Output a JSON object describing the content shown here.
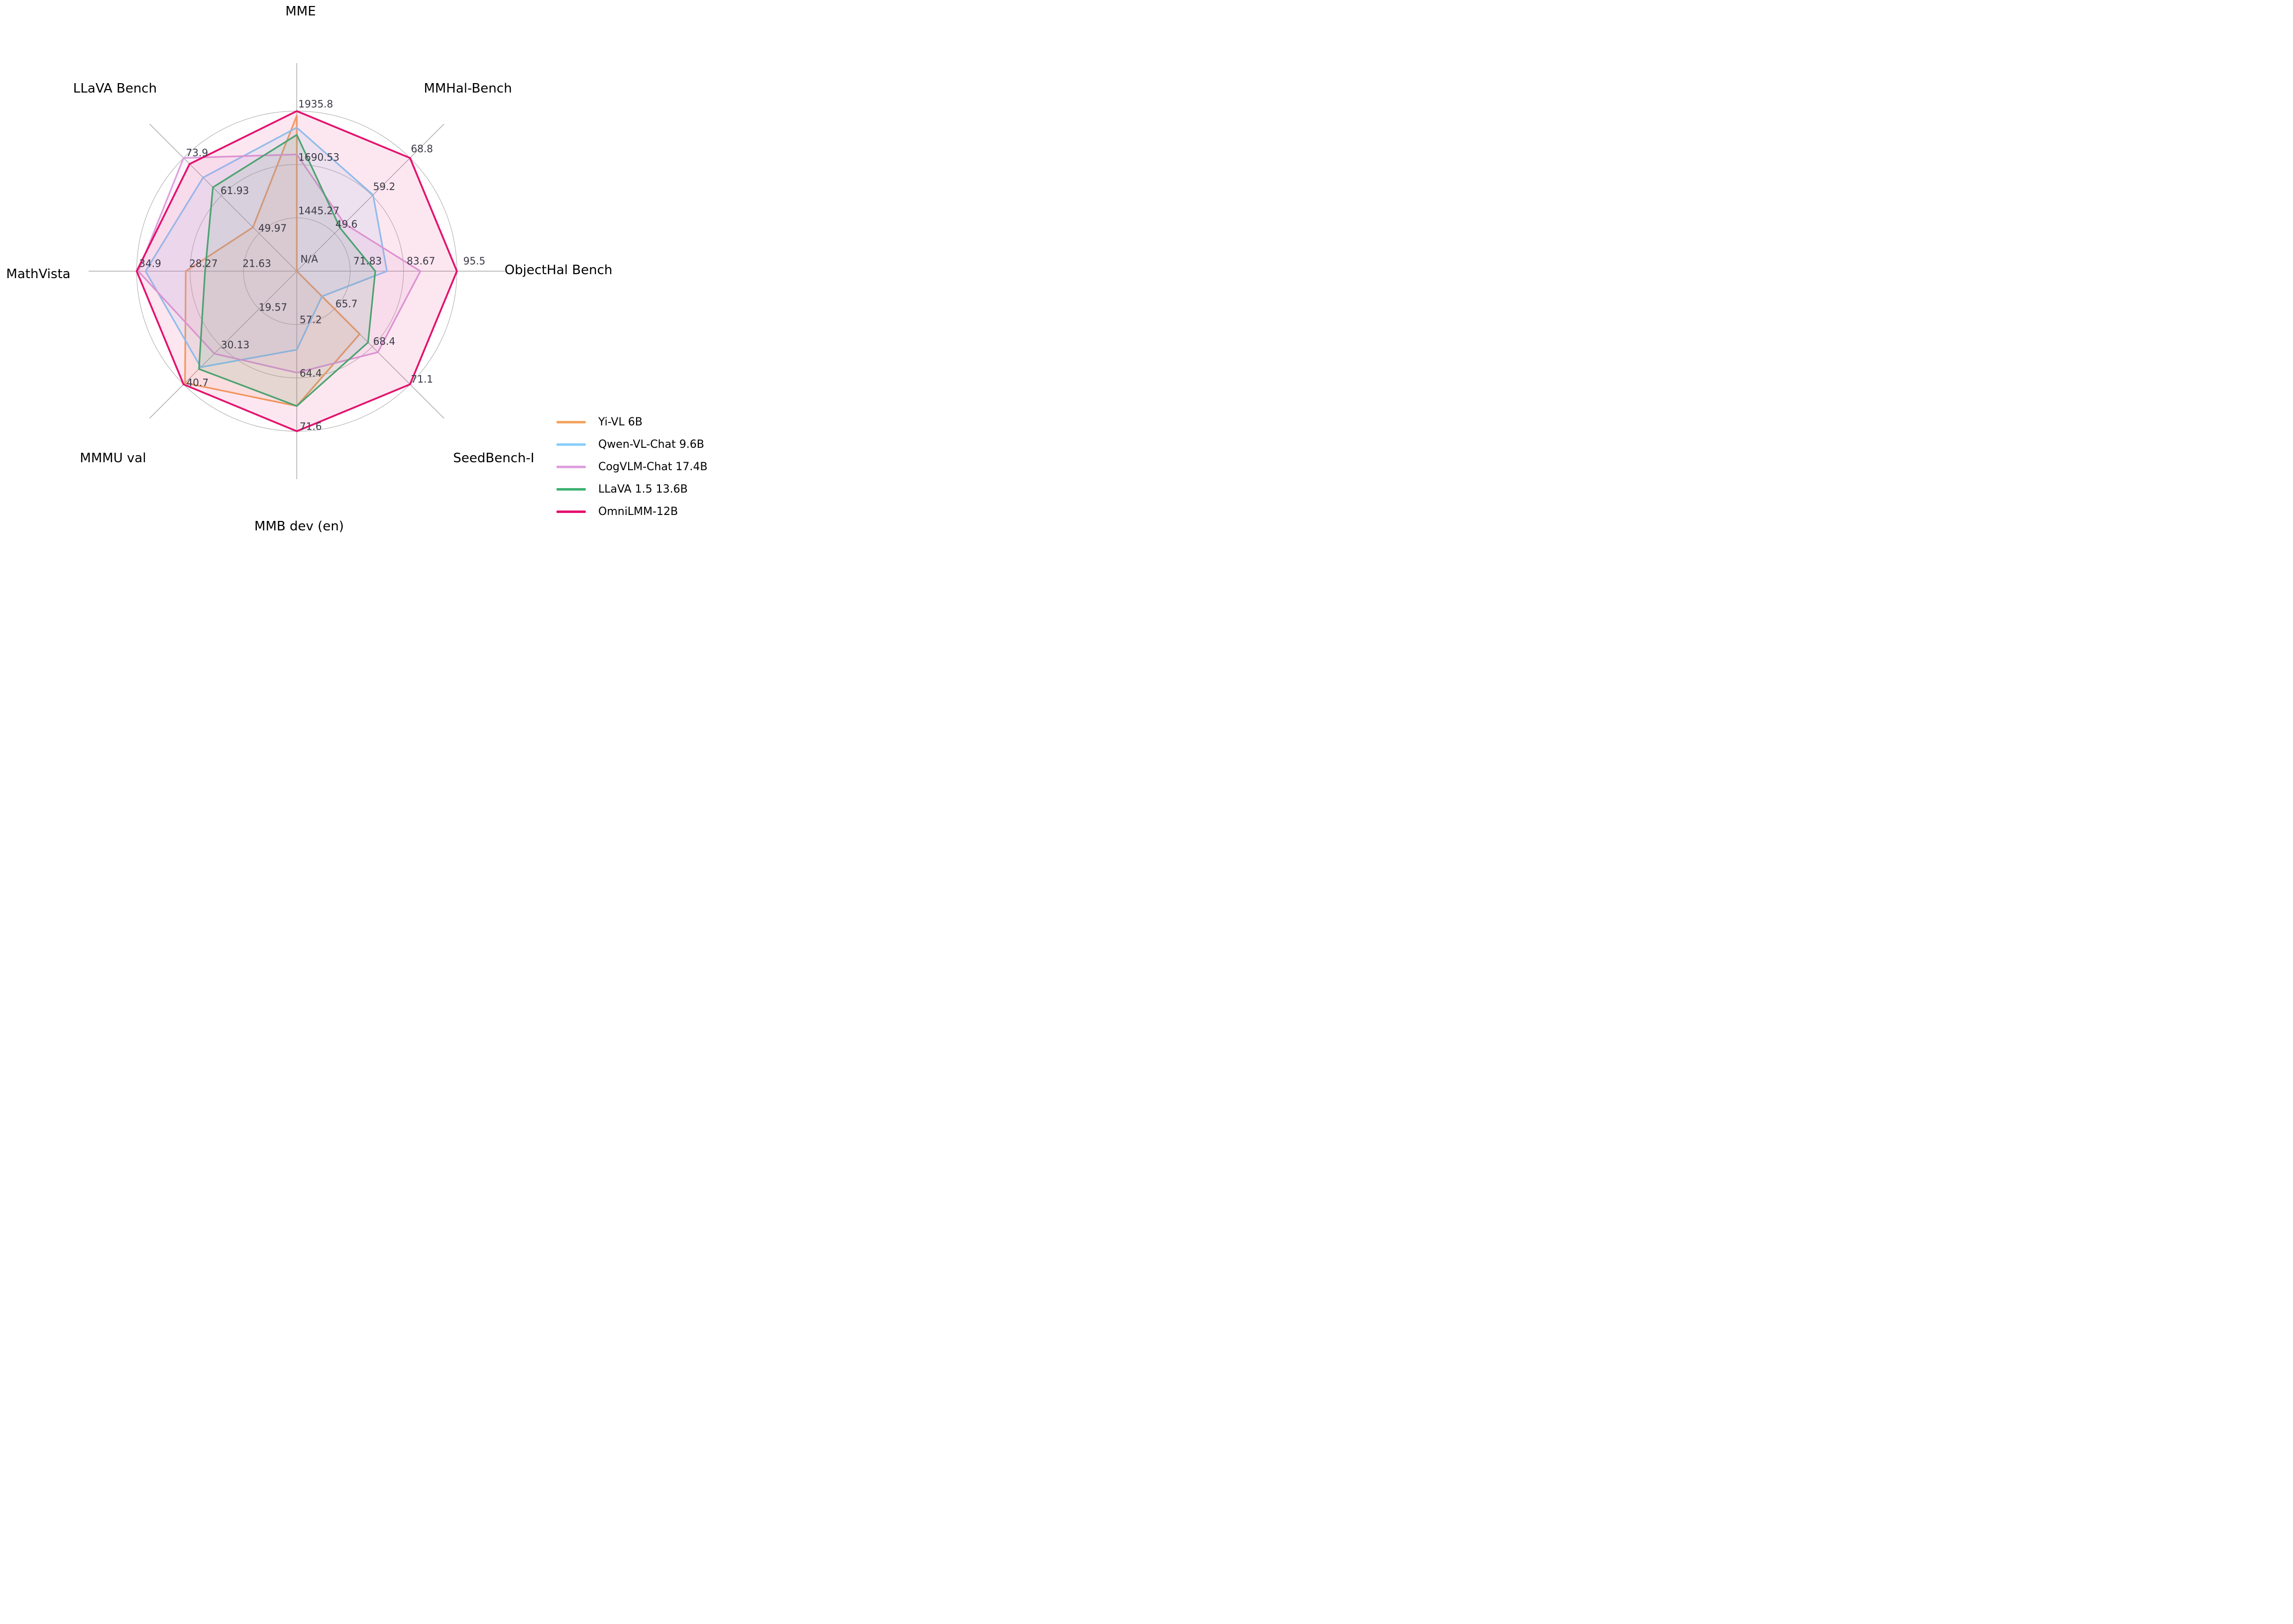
{
  "chart_data": {
    "type": "radar",
    "center_label": "N/A",
    "grid": "on",
    "legend_position": "lower right",
    "colors": {
      "ring": "#B0B0B0",
      "spoke": "#9B9B9B",
      "tick_label": "#3B3947",
      "axis_title": "#000000"
    },
    "axes": [
      {
        "label": "MME",
        "min": 1200,
        "max": 1935.8,
        "tick_labels": [
          "1445.27",
          "1690.53",
          "1935.8"
        ]
      },
      {
        "label": "MMHal-Bench",
        "min": 40,
        "max": 68.8,
        "tick_labels": [
          "49.6",
          "59.2",
          "68.8"
        ]
      },
      {
        "label": "ObjectHal Bench",
        "min": 60,
        "max": 95.5,
        "tick_labels": [
          "71.83",
          "83.67",
          "95.5"
        ]
      },
      {
        "label": "SeedBench-I",
        "min": 63,
        "max": 71.1,
        "tick_labels": [
          "65.7",
          "68.4",
          "71.1"
        ]
      },
      {
        "label": "MMB dev (en)",
        "min": 50,
        "max": 71.6,
        "tick_labels": [
          "57.2",
          "64.4",
          "71.6"
        ]
      },
      {
        "label": "MMMU val",
        "min": 9,
        "max": 40.7,
        "tick_labels": [
          "19.57",
          "30.13",
          "40.7"
        ]
      },
      {
        "label": "MathVista",
        "min": 15,
        "max": 34.9,
        "tick_labels": [
          "21.63",
          "28.27",
          "34.9"
        ]
      },
      {
        "label": "LLaVA Bench",
        "min": 38,
        "max": 73.9,
        "tick_labels": [
          "49.97",
          "61.93",
          "73.9"
        ]
      }
    ],
    "series": [
      {
        "name": "Yi-VL 6B",
        "color": "#F4A460",
        "values": [
          1915.1,
          null,
          null,
          67.5,
          68.2,
          40.3,
          28.8,
          51.9
        ]
      },
      {
        "name": "Qwen-VL-Chat 9.6B",
        "color": "#87CEFA",
        "values": [
          1860,
          59.4,
          80.0,
          64.8,
          60.6,
          35.9,
          33.8,
          67.7
        ]
      },
      {
        "name": "CogVLM-Chat 17.4B",
        "color": "#DDA0DD",
        "values": [
          1736.6,
          52.1,
          87.4,
          68.8,
          63.7,
          32.1,
          34.7,
          73.9
        ]
      },
      {
        "name": "LLaVA 1.5 13.6B",
        "color": "#3CB371",
        "values": [
          1826.7,
          51.0,
          77.4,
          68.1,
          68.2,
          36.4,
          26.4,
          64.6
        ]
      },
      {
        "name": "OmniLMM-12B",
        "color": "#E3126E",
        "values": [
          1935.8,
          68.8,
          95.5,
          71.1,
          71.6,
          40.7,
          34.9,
          72.0
        ]
      }
    ]
  }
}
